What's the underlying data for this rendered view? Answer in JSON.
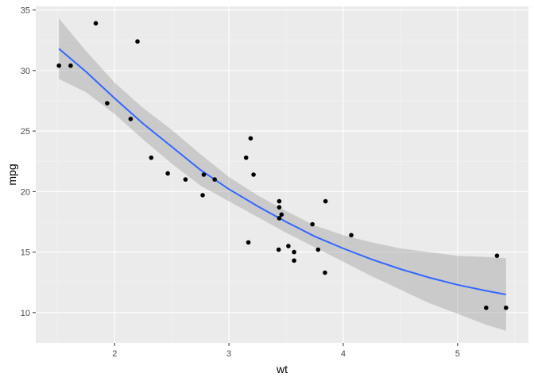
{
  "chart_data": {
    "type": "scatter",
    "title": "",
    "xlabel": "wt",
    "ylabel": "mpg",
    "xlim": [
      1.31,
      5.62
    ],
    "ylim": [
      7.5,
      35.3
    ],
    "x_ticks": [
      2,
      3,
      4,
      5
    ],
    "y_ticks": [
      10,
      15,
      20,
      25,
      30,
      35
    ],
    "x_tick_labels": [
      "2",
      "3",
      "4",
      "5"
    ],
    "y_tick_labels": [
      "10",
      "15",
      "20",
      "25",
      "30",
      "35"
    ],
    "grid": true,
    "legend": "none",
    "points": [
      {
        "x": 2.62,
        "y": 21.0
      },
      {
        "x": 2.875,
        "y": 21.0
      },
      {
        "x": 2.32,
        "y": 22.8
      },
      {
        "x": 3.215,
        "y": 21.4
      },
      {
        "x": 3.44,
        "y": 18.7
      },
      {
        "x": 3.46,
        "y": 18.1
      },
      {
        "x": 3.57,
        "y": 14.3
      },
      {
        "x": 3.19,
        "y": 24.4
      },
      {
        "x": 3.15,
        "y": 22.8
      },
      {
        "x": 3.44,
        "y": 19.2
      },
      {
        "x": 3.44,
        "y": 17.8
      },
      {
        "x": 4.07,
        "y": 16.4
      },
      {
        "x": 3.73,
        "y": 17.3
      },
      {
        "x": 3.78,
        "y": 15.2
      },
      {
        "x": 5.25,
        "y": 10.4
      },
      {
        "x": 5.424,
        "y": 10.4
      },
      {
        "x": 5.345,
        "y": 14.7
      },
      {
        "x": 2.2,
        "y": 32.4
      },
      {
        "x": 1.615,
        "y": 30.4
      },
      {
        "x": 1.835,
        "y": 33.9
      },
      {
        "x": 2.465,
        "y": 21.5
      },
      {
        "x": 3.52,
        "y": 15.5
      },
      {
        "x": 3.435,
        "y": 15.2
      },
      {
        "x": 3.84,
        "y": 13.3
      },
      {
        "x": 3.845,
        "y": 19.2
      },
      {
        "x": 1.935,
        "y": 27.3
      },
      {
        "x": 2.14,
        "y": 26.0
      },
      {
        "x": 1.513,
        "y": 30.4
      },
      {
        "x": 3.17,
        "y": 15.8
      },
      {
        "x": 2.77,
        "y": 19.7
      },
      {
        "x": 3.57,
        "y": 15.0
      },
      {
        "x": 2.78,
        "y": 21.4
      }
    ],
    "smooth": {
      "x": [
        1.513,
        1.75,
        2.0,
        2.25,
        2.5,
        2.75,
        3.0,
        3.25,
        3.5,
        3.75,
        4.0,
        4.25,
        4.5,
        4.75,
        5.0,
        5.25,
        5.424
      ],
      "y": [
        31.8,
        29.9,
        27.7,
        25.6,
        23.7,
        21.8,
        20.2,
        18.8,
        17.5,
        16.3,
        15.3,
        14.4,
        13.6,
        12.9,
        12.3,
        11.8,
        11.5
      ],
      "lower": [
        29.3,
        28.2,
        26.4,
        24.3,
        22.3,
        20.5,
        19.2,
        17.9,
        16.6,
        15.4,
        14.2,
        13.0,
        11.9,
        10.8,
        9.9,
        9.0,
        8.5
      ],
      "upper": [
        34.3,
        31.6,
        29.0,
        26.9,
        25.1,
        23.1,
        21.2,
        19.7,
        18.4,
        17.2,
        16.4,
        15.8,
        15.3,
        15.0,
        14.7,
        14.6,
        14.5
      ]
    },
    "colors": {
      "panel": "#ebebeb",
      "grid_major": "#ffffff",
      "grid_minor": "#f5f5f5",
      "point": "#000000",
      "line": "#3366ff",
      "band": "#999999"
    }
  }
}
